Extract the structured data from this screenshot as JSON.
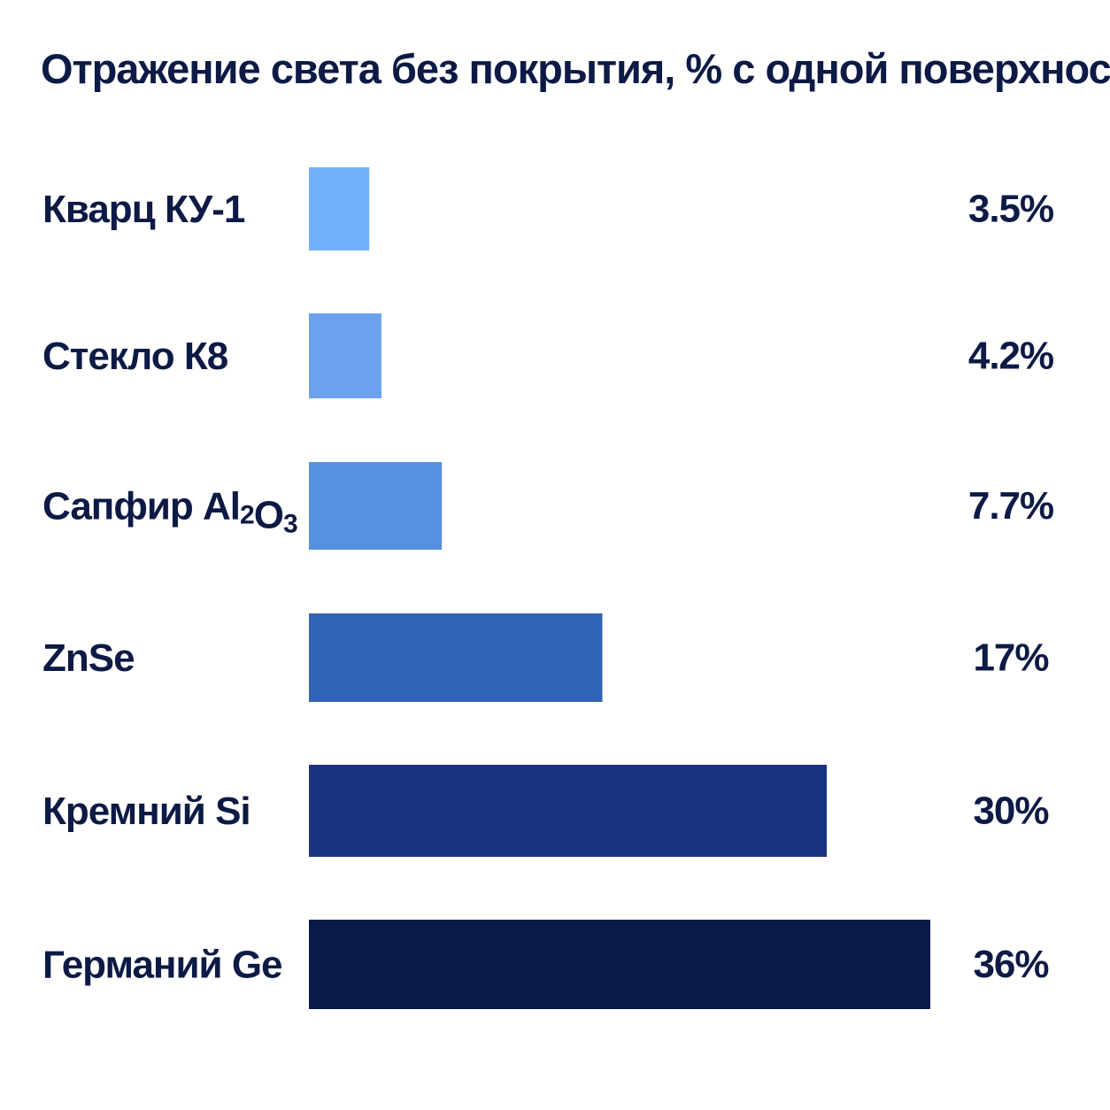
{
  "chart_data": {
    "type": "bar",
    "orientation": "horizontal",
    "title": "Отражение света без покрытия, % с одной поверхности",
    "xlabel": "",
    "ylabel": "",
    "xlim": [
      0,
      36
    ],
    "grid": false,
    "legend": "none",
    "categories": [
      "Кварц КУ-1",
      "Стекло К8",
      "Сапфир Al2O3",
      "ZnSe",
      "Кремний Si",
      "Германий Ge"
    ],
    "values": [
      3.5,
      4.2,
      7.7,
      17,
      30,
      36
    ],
    "value_labels": [
      "3.5%",
      "4.2%",
      "7.7%",
      "17%",
      "30%",
      "36%"
    ],
    "bar_colors": [
      "#74b1fb",
      "#6aa2ef",
      "#5690df",
      "#3163b6",
      "#18347e",
      "#0b1a4b"
    ],
    "text_color": "#0d1a45"
  }
}
